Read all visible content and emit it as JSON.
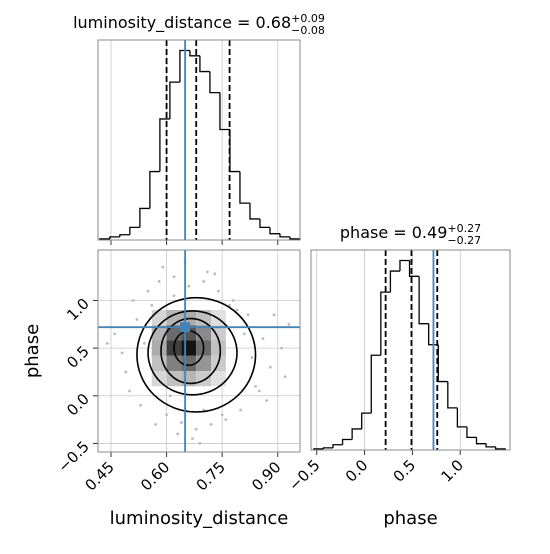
{
  "chart_data": [
    {
      "type": "histogram",
      "title": "luminosity_distance = 0.68",
      "title_sup": "+0.09",
      "title_sub": "−0.08",
      "bins": [
        0.42,
        0.447,
        0.474,
        0.501,
        0.528,
        0.555,
        0.582,
        0.609,
        0.636,
        0.663,
        0.69,
        0.717,
        0.744,
        0.771,
        0.798,
        0.825,
        0.852,
        0.879,
        0.906,
        0.933,
        0.96
      ],
      "counts": [
        1,
        3,
        5,
        12,
        30,
        65,
        115,
        150,
        180,
        175,
        160,
        140,
        105,
        65,
        35,
        20,
        12,
        6,
        3,
        1
      ],
      "xlim": [
        0.415,
        0.96
      ],
      "ylim": [
        0,
        190
      ],
      "xticks": [
        0.45,
        0.6,
        0.75,
        0.9
      ],
      "quantiles": [
        0.6,
        0.68,
        0.77
      ],
      "truth": 0.65,
      "color": "#000000",
      "truth_color": "#4682b4",
      "grid": true
    },
    {
      "type": "hist2d",
      "x_label": "luminosity_distance",
      "y_label": "phase",
      "xlim": [
        0.415,
        0.96
      ],
      "ylim": [
        -0.59,
        1.53
      ],
      "xticks": [
        0.45,
        {
          "value": 0.6,
          "label": "0.60"
        },
        0.75,
        {
          "value": 0.9,
          "label": "0.90"
        }
      ],
      "yticks": [
        {
          "value": -0.5,
          "label": "−0.5"
        },
        {
          "value": 0,
          "label": "0.0"
        },
        0.5,
        {
          "value": 1,
          "label": "1.0"
        }
      ],
      "points": {
        "x": [
          0.48,
          0.52,
          0.55,
          0.57,
          0.5,
          0.53,
          0.58,
          0.62,
          0.66,
          0.7,
          0.74,
          0.78,
          0.82,
          0.86,
          0.88,
          0.84,
          0.8,
          0.76,
          0.72,
          0.68,
          0.64,
          0.6,
          0.56,
          0.54,
          0.59,
          0.63,
          0.67,
          0.71,
          0.75,
          0.79,
          0.83,
          0.87,
          0.91,
          0.93,
          0.46,
          0.49,
          0.61,
          0.65,
          0.69,
          0.73,
          0.77,
          0.81,
          0.85,
          0.89,
          0.51,
          0.57,
          0.92,
          0.44,
          0.62,
          0.7
        ],
        "y": [
          0.45,
          0.8,
          1.1,
          0.2,
          0.05,
          -0.1,
          1.2,
          1.25,
          1.15,
          1.2,
          1.1,
          1.0,
          0.85,
          0.6,
          0.3,
          0.1,
          -0.15,
          -0.25,
          -0.3,
          -0.35,
          -0.28,
          -0.2,
          0.95,
          0.55,
          1.35,
          -0.4,
          -0.45,
          1.3,
          -0.2,
          0.9,
          0.4,
          -0.05,
          0.5,
          0.75,
          0.65,
          0.25,
          0.0,
          1.4,
          -0.5,
          1.28,
          0.95,
          0.65,
          0.05,
          0.85,
          1.0,
          -0.3,
          0.2,
          0.55,
          1.05,
          -0.15
        ]
      },
      "density": {
        "x_edges": [
          0.56,
          0.6,
          0.64,
          0.68,
          0.72,
          0.76
        ],
        "y_edges": [
          0.1,
          0.26,
          0.42,
          0.58,
          0.74,
          0.9
        ],
        "values": [
          [
            0.1,
            0.2,
            0.25,
            0.15,
            0.05
          ],
          [
            0.2,
            0.5,
            0.6,
            0.4,
            0.15
          ],
          [
            0.3,
            0.8,
            1.0,
            0.6,
            0.2
          ],
          [
            0.25,
            0.6,
            0.7,
            0.45,
            0.15
          ],
          [
            0.1,
            0.25,
            0.3,
            0.2,
            0.05
          ]
        ]
      },
      "contours": [
        {
          "x": 0.68,
          "y": 0.43,
          "rx": 0.16,
          "ry": 0.6
        },
        {
          "x": 0.67,
          "y": 0.45,
          "rx": 0.12,
          "ry": 0.44
        },
        {
          "x": 0.665,
          "y": 0.47,
          "rx": 0.08,
          "ry": 0.34
        },
        {
          "x": 0.66,
          "y": 0.5,
          "rx": 0.04,
          "ry": 0.18
        }
      ],
      "truths": [
        0.65,
        0.72
      ],
      "truth_color": "#4682b4",
      "grid": true
    },
    {
      "type": "histogram",
      "title": "phase = 0.49",
      "title_sup": "+0.27",
      "title_sub": "−0.27",
      "x_label": "phase",
      "bins": [
        -0.53,
        -0.43,
        -0.33,
        -0.23,
        -0.13,
        -0.03,
        0.07,
        0.17,
        0.27,
        0.37,
        0.47,
        0.57,
        0.67,
        0.77,
        0.87,
        0.97,
        1.07,
        1.17,
        1.27,
        1.37,
        1.47
      ],
      "counts": [
        1,
        2,
        5,
        10,
        20,
        35,
        90,
        150,
        170,
        180,
        165,
        120,
        100,
        65,
        40,
        22,
        12,
        6,
        3,
        1
      ],
      "xlim": [
        -0.56,
        1.52
      ],
      "ylim": [
        0,
        190
      ],
      "xticks": [
        {
          "value": -0.5,
          "label": "−0.5"
        },
        {
          "value": 0,
          "label": "0.0"
        },
        0.5,
        {
          "value": 1,
          "label": "1.0"
        }
      ],
      "quantiles": [
        0.22,
        0.49,
        0.76
      ],
      "truth": 0.72,
      "color": "#000000",
      "truth_color": "#4682b4",
      "grid": true
    }
  ]
}
